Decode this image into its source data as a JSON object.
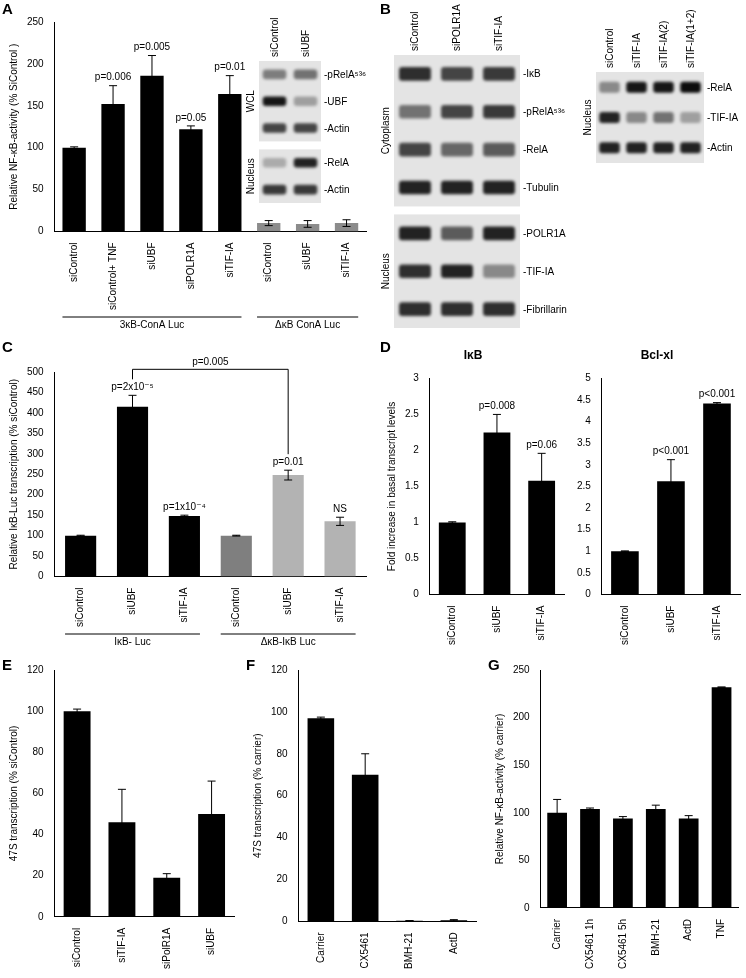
{
  "chart_data": [
    {
      "panel": "A",
      "type": "bar",
      "y_label": "Relative NF-κB-activity (% SiControl )",
      "categories": [
        "siControl",
        "siControl+ TNF",
        "siUBF",
        "siPOLR1A",
        "siTIF-IA",
        "siControl",
        "siUBF",
        "siTIF-IA"
      ],
      "values": [
        100,
        152,
        186,
        122,
        164,
        10,
        9,
        10
      ],
      "errors": [
        1,
        22,
        24,
        4,
        22,
        3,
        4,
        4
      ],
      "colors": [
        "#000000",
        "#000000",
        "#000000",
        "#000000",
        "#000000",
        "#8c8c8c",
        "#8c8c8c",
        "#8c8c8c"
      ],
      "annotations": [
        null,
        "p=0.006",
        "p=0.005",
        "p=0.05",
        "p=0.01",
        null,
        null,
        null
      ],
      "groups": [
        {
          "label": "3κB-ConA Luc",
          "start": 0,
          "end": 4
        },
        {
          "label": "ΔκB ConA Luc",
          "start": 5,
          "end": 7
        }
      ],
      "ylim": [
        0,
        250
      ],
      "yticks": [
        0,
        50,
        100,
        150,
        200,
        250
      ],
      "grid": false
    },
    {
      "panel": "C",
      "type": "bar",
      "y_label": "Relative IκB-Luc transcription (% siControl)",
      "categories": [
        "siControl",
        "siUBF",
        "siTIF-IA",
        "siControl",
        "siUBF",
        "siTIF-IA"
      ],
      "values": [
        100,
        415,
        148,
        100,
        248,
        135
      ],
      "errors": [
        1,
        28,
        2,
        1,
        12,
        10
      ],
      "colors": [
        "#000000",
        "#000000",
        "#000000",
        "#7f7f7f",
        "#b3b3b3",
        "#b3b3b3"
      ],
      "annotations": [
        null,
        "p=2x10⁻⁵",
        "p=1x10⁻⁴",
        null,
        "p=0.01",
        "NS"
      ],
      "comparisons": [
        {
          "from": 1,
          "to": 4,
          "label": "p=0.005"
        }
      ],
      "groups": [
        {
          "label": "IκB- Luc",
          "start": 0,
          "end": 2
        },
        {
          "label": "ΔκB-IκB Luc",
          "start": 3,
          "end": 5
        }
      ],
      "ylim": [
        0,
        500
      ],
      "yticks": [
        0,
        50,
        100,
        150,
        200,
        250,
        300,
        350,
        400,
        450,
        500
      ],
      "grid": false
    },
    {
      "panel": "D",
      "type": "bar",
      "title": "IκB",
      "y_label": "Fold increase in basal transcript levels",
      "categories": [
        "siControl",
        "siUBF",
        "siTIF-IA"
      ],
      "values": [
        1,
        2.25,
        1.58
      ],
      "errors": [
        0.01,
        0.25,
        0.38
      ],
      "color": "#000000",
      "annotations": [
        null,
        "p=0.008",
        "p=0.06"
      ],
      "ylim": [
        0,
        3
      ],
      "yticks": [
        0,
        0.5,
        1,
        1.5,
        2,
        2.5,
        3
      ],
      "grid": false
    },
    {
      "type": "bar",
      "title": "Bcl-xl",
      "categories": [
        "siControl",
        "siUBF",
        "siTIF-IA"
      ],
      "values": [
        1,
        2.62,
        4.42
      ],
      "errors": [
        0.01,
        0.5,
        0.02
      ],
      "color": "#000000",
      "annotations": [
        null,
        "p<0.001",
        "p<0.001"
      ],
      "ylim": [
        0,
        5
      ],
      "yticks": [
        0,
        0.5,
        1,
        1.5,
        2,
        2.5,
        3,
        3.5,
        4,
        4.5,
        5
      ],
      "grid": false
    },
    {
      "panel": "E",
      "type": "bar",
      "y_label": "47S transcription (% siControl)",
      "categories": [
        "siControl",
        "siTIF-IA",
        "siPolR1A",
        "siUBF"
      ],
      "values": [
        100,
        46,
        19,
        50
      ],
      "errors": [
        1,
        16,
        2,
        16
      ],
      "color": "#000000",
      "ylim": [
        0,
        120
      ],
      "yticks": [
        0,
        20,
        40,
        60,
        80,
        100,
        120
      ],
      "grid": false
    },
    {
      "panel": "F",
      "type": "bar",
      "y_label": "47S transcription (% carrier)",
      "categories": [
        "Carrier",
        "CX5461",
        "BMH-21",
        "ActD"
      ],
      "values": [
        97,
        70,
        0.3,
        0.5
      ],
      "errors": [
        0.5,
        10,
        0,
        0.3
      ],
      "color": "#000000",
      "ylim": [
        0,
        120
      ],
      "yticks": [
        0,
        20,
        40,
        60,
        80,
        100,
        120
      ],
      "grid": false
    },
    {
      "panel": "G",
      "type": "bar",
      "y_label": "Relative NF-κB-activity (% carrier)",
      "categories": [
        "Carrier",
        "CX5461 1h",
        "CX5461 5h",
        "BMH-21",
        "ActD",
        "TNF"
      ],
      "values": [
        100,
        104,
        94,
        104,
        94,
        232
      ],
      "errors": [
        14,
        1,
        2,
        4,
        3,
        0
      ],
      "color": "#000000",
      "ylim": [
        0,
        250
      ],
      "yticks": [
        0,
        50,
        100,
        150,
        200,
        250
      ],
      "grid": false
    }
  ],
  "blots": [
    {
      "columns": [
        "siControl",
        "siUBF"
      ],
      "sections": [
        {
          "label": "WCL",
          "rows": [
            {
              "label": "-pRelA⁵³⁶",
              "bands": [
                0.45,
                0.5
              ]
            },
            {
              "label": "-UBF",
              "bands": [
                0.9,
                0.3
              ]
            },
            {
              "label": "-Actin",
              "bands": [
                0.7,
                0.7
              ]
            }
          ]
        },
        {
          "label": "Nucleus",
          "rows": [
            {
              "label": "-RelA",
              "bands": [
                0.25,
                0.85
              ]
            },
            {
              "label": "-Actin",
              "bands": [
                0.75,
                0.75
              ]
            }
          ]
        }
      ]
    },
    {
      "panel": "B",
      "columns": [
        "siControl",
        "siPOLR1A",
        "siTIF-IA"
      ],
      "sections": [
        {
          "label": "Cytoplasm",
          "rows": [
            {
              "label": "-IκB",
              "bands": [
                0.8,
                0.7,
                0.75
              ]
            },
            {
              "label": "-pRelA⁵³⁶",
              "bands": [
                0.5,
                0.7,
                0.75
              ]
            },
            {
              "label": "-RelA",
              "bands": [
                0.7,
                0.55,
                0.6
              ]
            },
            {
              "label": "-Tubulin",
              "bands": [
                0.85,
                0.85,
                0.85
              ]
            }
          ]
        },
        {
          "label": "Nucleus",
          "rows": [
            {
              "label": "-POLR1A",
              "bands": [
                0.85,
                0.6,
                0.85
              ]
            },
            {
              "label": "-TIF-IA",
              "bands": [
                0.8,
                0.85,
                0.4
              ]
            },
            {
              "label": "-Fibrillarin",
              "bands": [
                0.8,
                0.8,
                0.8
              ]
            }
          ]
        }
      ]
    },
    {
      "columns": [
        "siControl",
        "siTIF-IA",
        "siTIF-IA(2)",
        "siTIF-IA(1+2)"
      ],
      "sections": [
        {
          "label": "Nucleus",
          "rows": [
            {
              "label": "-RelA",
              "bands": [
                0.4,
                0.9,
                0.9,
                0.95
              ]
            },
            {
              "label": "-TIF-IA",
              "bands": [
                0.85,
                0.4,
                0.5,
                0.3
              ]
            },
            {
              "label": "-Actin",
              "bands": [
                0.85,
                0.85,
                0.85,
                0.85
              ]
            }
          ]
        }
      ]
    }
  ]
}
